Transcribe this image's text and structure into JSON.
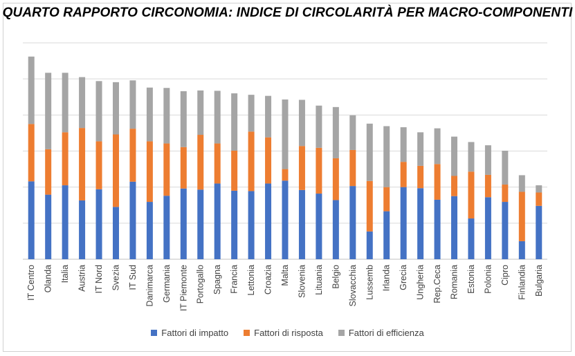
{
  "chart_data": {
    "type": "bar",
    "stacked": true,
    "title": "QUARTO RAPPORTO CIRCONOMIA:  INDICE DI CIRCOLARITÀ PER MACRO-COMPONENTI",
    "categories": [
      "IT Centro",
      "Olanda",
      "Italia",
      "Austria",
      "IT Nord",
      "Svezia",
      "IT Sud",
      "Danimarca",
      "Germania",
      "IT Piemonte",
      "Portogallo",
      "Spagna",
      "Francia",
      "Lettonia",
      "Croazia",
      "Malta",
      "Slovenia",
      "Lituania",
      "Belgio",
      "Slovacchia",
      "Lussemb",
      "Irlanda",
      "Grecia",
      "Ungheria",
      "Rep.Ceca",
      "Romania",
      "Estonia",
      "Polonia",
      "Cipro",
      "Finlandia",
      "Bulgaria"
    ],
    "series": [
      {
        "name": "Fattori di impatto",
        "color": "#4472c4",
        "values": [
          21.6,
          17.9,
          20.5,
          16.3,
          19.4,
          14.5,
          21.5,
          15.9,
          17.6,
          19.6,
          19.3,
          21.0,
          19.0,
          18.9,
          21.0,
          21.8,
          19.2,
          18.2,
          16.4,
          20.3,
          7.7,
          13.3,
          20.0,
          19.7,
          16.5,
          17.5,
          11.3,
          17.2,
          15.9,
          5.0,
          14.8
        ]
      },
      {
        "name": "Fattori di risposta",
        "color": "#ed7d31",
        "values": [
          15.9,
          12.6,
          14.7,
          20.1,
          13.3,
          20.1,
          14.7,
          16.8,
          14.5,
          11.5,
          15.2,
          11.1,
          11.1,
          16.5,
          12.8,
          3.2,
          12.2,
          12.7,
          11.6,
          10.0,
          14.0,
          6.7,
          7.0,
          6.2,
          9.9,
          5.6,
          13.0,
          6.2,
          4.8,
          13.7,
          3.7
        ]
      },
      {
        "name": "Fattori di efficienza",
        "color": "#a5a5a5",
        "values": [
          18.7,
          21.2,
          16.5,
          14.1,
          16.7,
          14.5,
          13.4,
          14.9,
          15.4,
          15.5,
          12.3,
          14.6,
          15.9,
          10.2,
          11.5,
          19.3,
          12.8,
          11.7,
          14.2,
          9.6,
          15.9,
          16.9,
          9.6,
          9.3,
          9.9,
          10.9,
          8.2,
          8.2,
          9.4,
          4.6,
          2.0
        ]
      }
    ],
    "ylim": [
      0,
      60
    ],
    "ytick_step": 10,
    "grid": true,
    "show_y_tick_labels": false,
    "legend_position": "bottom"
  }
}
